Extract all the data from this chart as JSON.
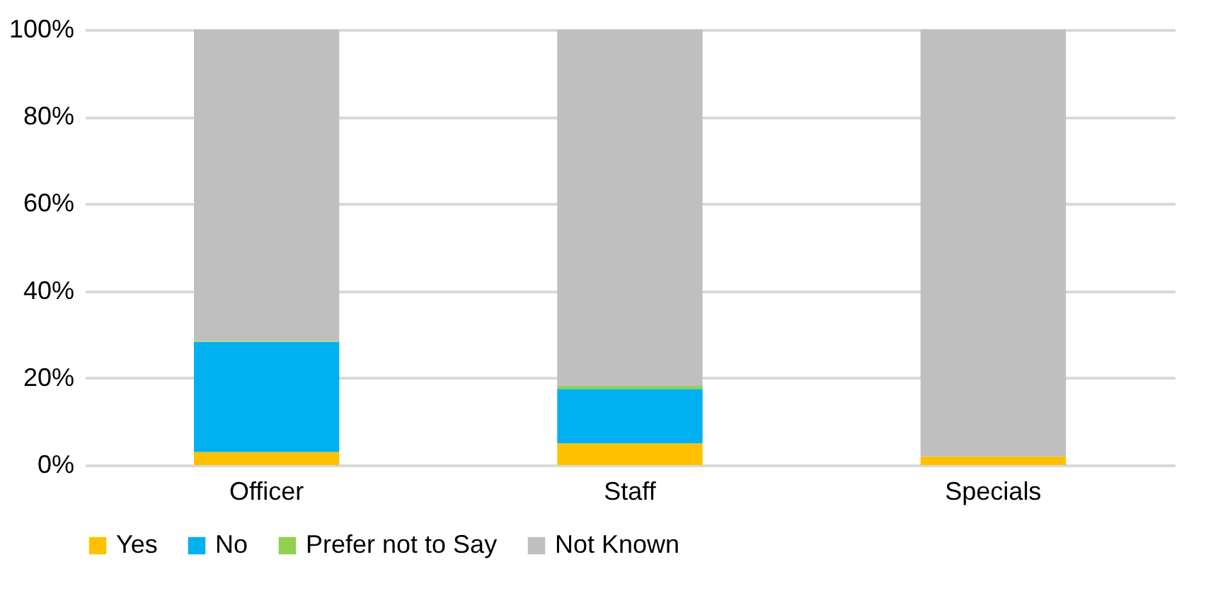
{
  "chart_data": {
    "type": "bar",
    "stacked": true,
    "categories": [
      "Officer",
      "Staff",
      "Specials"
    ],
    "series": [
      {
        "name": "Yes",
        "color": "#ffc000",
        "values": [
          3.0,
          5.0,
          2.0
        ]
      },
      {
        "name": "No",
        "color": "#00b0f0",
        "values": [
          25.3,
          12.5,
          0
        ]
      },
      {
        "name": "Prefer not to Say",
        "color": "#92d050",
        "values": [
          0.2,
          0.7,
          0
        ]
      },
      {
        "name": "Not Known",
        "color": "#bfbfbf",
        "values": [
          71.5,
          81.8,
          98.0
        ]
      }
    ],
    "ylim": [
      0,
      100
    ],
    "yticks": [
      {
        "value": 0,
        "label": "0%"
      },
      {
        "value": 20,
        "label": "20%"
      },
      {
        "value": 40,
        "label": "40%"
      },
      {
        "value": 60,
        "label": "60%"
      },
      {
        "value": 80,
        "label": "80%"
      },
      {
        "value": 100,
        "label": "100%"
      }
    ],
    "grid": "y",
    "legend": "bottom"
  }
}
